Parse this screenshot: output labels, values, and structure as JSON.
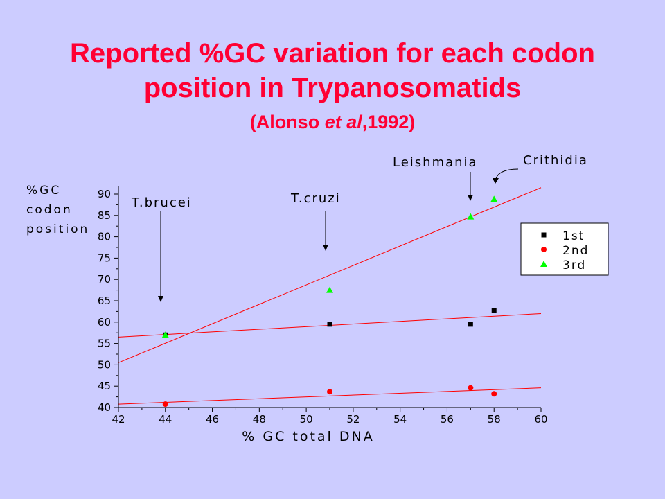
{
  "slide": {
    "title_line1": "Reported %GC variation for each codon",
    "title_line2": "position in Trypanosomatids",
    "citation_prefix": "(Alonso ",
    "citation_italic": "et al",
    "citation_suffix": ",1992)"
  },
  "chart_data": {
    "type": "scatter",
    "xlabel": "% GC total DNA",
    "ylabel_lines": [
      "%GC",
      "codon",
      "position"
    ],
    "xlim": [
      42,
      60
    ],
    "ylim": [
      40,
      92
    ],
    "x_ticks": [
      42,
      44,
      46,
      48,
      50,
      52,
      54,
      56,
      58,
      60
    ],
    "y_ticks": [
      40,
      45,
      50,
      55,
      60,
      65,
      70,
      75,
      80,
      85,
      90
    ],
    "grid": false,
    "legend_position": "right",
    "series": [
      {
        "name": "1st",
        "marker": "square",
        "color": "#000000",
        "x": [
          44,
          51,
          57,
          58
        ],
        "y": [
          57,
          59.5,
          59.5,
          62.7
        ],
        "fit_line": {
          "x": [
            42,
            60
          ],
          "y": [
            56.5,
            62
          ]
        }
      },
      {
        "name": "2nd",
        "marker": "circle",
        "color": "#ff0000",
        "x": [
          44,
          51,
          57,
          58
        ],
        "y": [
          40.8,
          43.7,
          44.6,
          43.2
        ],
        "fit_line": {
          "x": [
            42,
            60
          ],
          "y": [
            40.8,
            44.6
          ]
        }
      },
      {
        "name": "3rd",
        "marker": "triangle",
        "color": "#00ff00",
        "x": [
          44,
          51,
          57,
          58
        ],
        "y": [
          57,
          67.5,
          84.7,
          88.8
        ],
        "fit_line": {
          "x": [
            42,
            60
          ],
          "y": [
            50.5,
            91.5
          ]
        }
      }
    ],
    "fit_line_color": "#ff0000",
    "annotations": [
      {
        "text": "T.brucei",
        "x": 44,
        "y": 65.5
      },
      {
        "text": "T.cruzi",
        "x": 51,
        "y": 77.5
      },
      {
        "text": "Leishmania",
        "x": 57,
        "y": 87.3
      },
      {
        "text": "Crithidia",
        "x": 58,
        "y": 92
      }
    ]
  }
}
